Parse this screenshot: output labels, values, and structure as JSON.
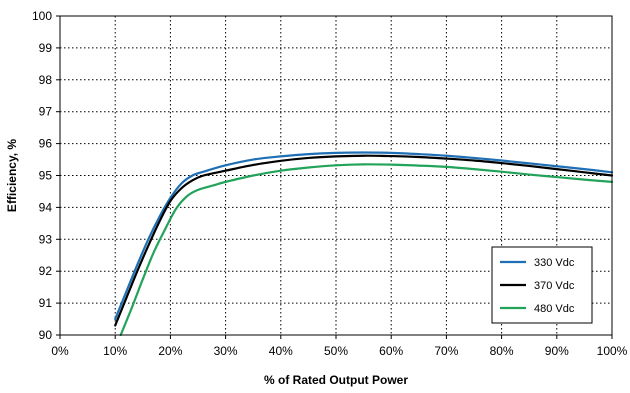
{
  "chart_data": {
    "type": "line",
    "title": "",
    "xlabel": "% of Rated Output Power",
    "ylabel": "Efficiency, %",
    "xlim": [
      0,
      100
    ],
    "ylim": [
      90,
      100
    ],
    "x_ticks": [
      0,
      10,
      20,
      30,
      40,
      50,
      60,
      70,
      80,
      90,
      100
    ],
    "x_tick_labels": [
      "0%",
      "10%",
      "20%",
      "30%",
      "40%",
      "50%",
      "60%",
      "70%",
      "80%",
      "90%",
      "100%"
    ],
    "y_ticks": [
      90,
      91,
      92,
      93,
      94,
      95,
      96,
      97,
      98,
      99,
      100
    ],
    "y_tick_labels": [
      "90",
      "91",
      "92",
      "93",
      "94",
      "95",
      "96",
      "97",
      "98",
      "99",
      "100"
    ],
    "grid": true,
    "grid_style": "dotted",
    "legend_position": "bottom-right",
    "series": [
      {
        "name": "330 Vdc",
        "color": "#1f6fb5",
        "x": [
          10,
          12,
          14,
          16,
          18,
          20,
          22,
          24,
          26,
          30,
          35,
          40,
          45,
          50,
          55,
          60,
          65,
          70,
          75,
          80,
          85,
          90,
          95,
          100
        ],
        "y": [
          90.5,
          91.35,
          92.2,
          93.0,
          93.7,
          94.3,
          94.75,
          95.0,
          95.12,
          95.32,
          95.5,
          95.6,
          95.67,
          95.71,
          95.72,
          95.71,
          95.67,
          95.62,
          95.55,
          95.47,
          95.38,
          95.29,
          95.2,
          95.1
        ]
      },
      {
        "name": "370 Vdc",
        "color": "#000000",
        "x": [
          10,
          12,
          14,
          16,
          18,
          20,
          22,
          24,
          26,
          30,
          35,
          40,
          45,
          50,
          55,
          60,
          65,
          70,
          75,
          80,
          85,
          90,
          95,
          100
        ],
        "y": [
          90.3,
          91.15,
          92.0,
          92.8,
          93.55,
          94.2,
          94.6,
          94.85,
          95.0,
          95.15,
          95.33,
          95.46,
          95.55,
          95.6,
          95.62,
          95.61,
          95.58,
          95.53,
          95.47,
          95.39,
          95.3,
          95.2,
          95.1,
          95.0
        ]
      },
      {
        "name": "480 Vdc",
        "color": "#22a35a",
        "x": [
          11,
          13,
          15,
          17,
          19,
          21,
          23,
          25,
          28,
          30,
          35,
          40,
          45,
          50,
          55,
          60,
          65,
          70,
          75,
          80,
          85,
          90,
          95,
          100
        ],
        "y": [
          90.0,
          90.85,
          91.75,
          92.6,
          93.3,
          93.95,
          94.35,
          94.55,
          94.7,
          94.8,
          95.0,
          95.15,
          95.25,
          95.32,
          95.35,
          95.34,
          95.31,
          95.27,
          95.2,
          95.12,
          95.03,
          94.95,
          94.87,
          94.8
        ]
      }
    ]
  }
}
